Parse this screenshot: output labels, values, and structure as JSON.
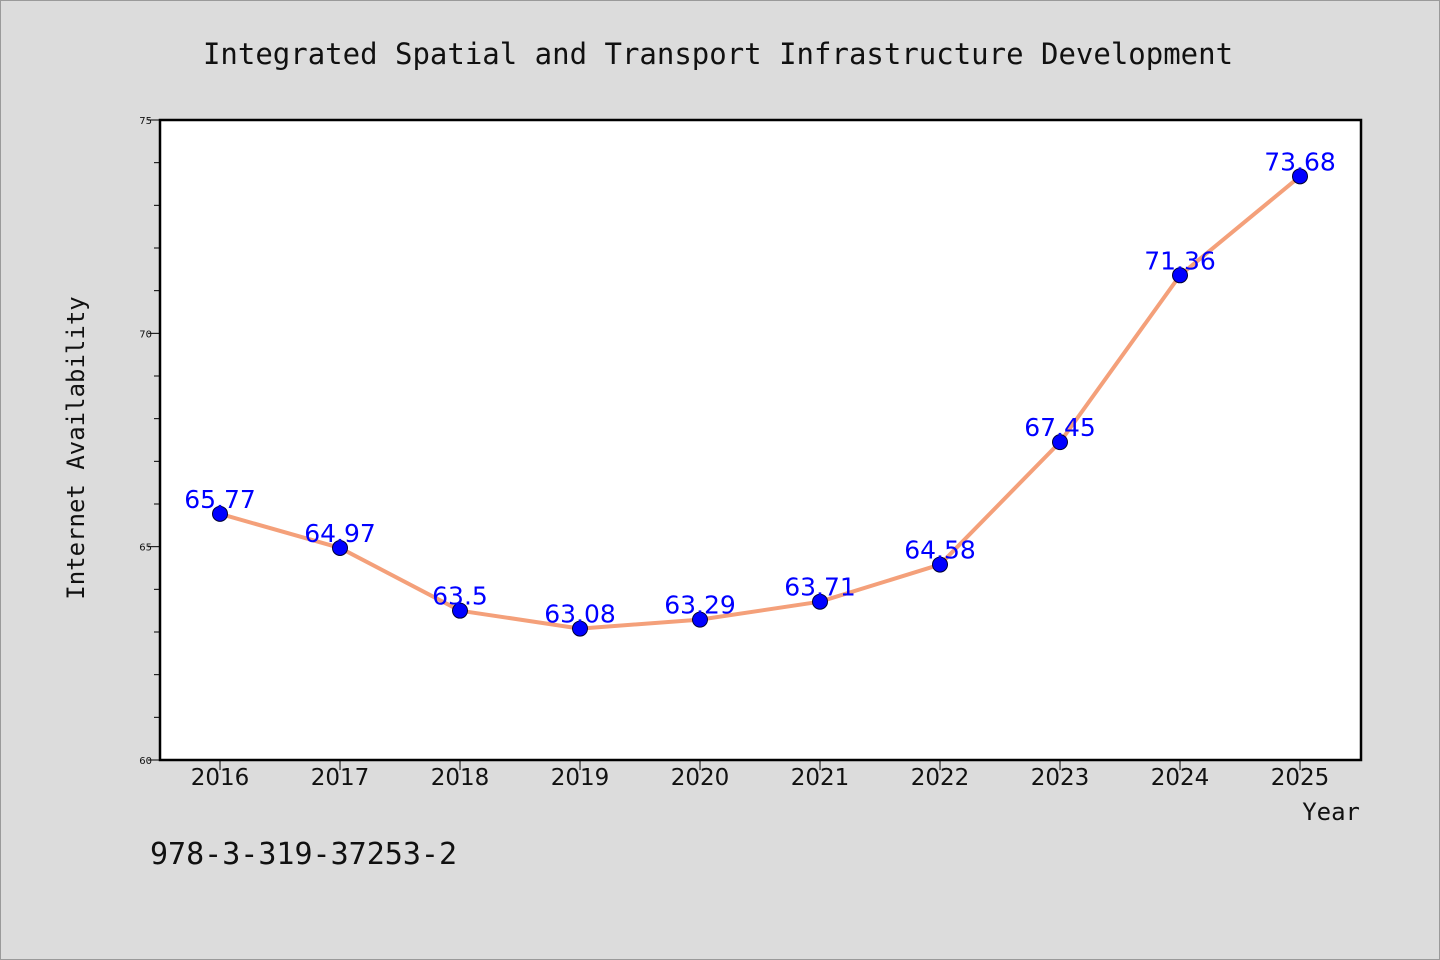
{
  "chart_data": {
    "type": "line",
    "title": "Integrated Spatial and Transport Infrastructure Development",
    "xlabel": "Year",
    "ylabel": "Internet Availability",
    "categories": [
      "2016",
      "2017",
      "2018",
      "2019",
      "2020",
      "2021",
      "2022",
      "2023",
      "2024",
      "2025"
    ],
    "series": [
      {
        "values": [
          65.77,
          64.97,
          63.5,
          63.08,
          63.29,
          63.71,
          64.58,
          67.45,
          71.36,
          73.68
        ],
        "color": "#f4a07a",
        "marker_color": "#0000ff"
      }
    ],
    "data_labels": [
      "65.77",
      "64.97",
      "63.5",
      "63.08",
      "63.29",
      "63.71",
      "64.58",
      "67.45",
      "71.36",
      "73.68"
    ],
    "ylim": [
      60,
      75
    ],
    "yticks": [
      60,
      65,
      70,
      75
    ],
    "ytick_labels": [
      "60",
      "65",
      "70",
      "75"
    ],
    "y_minor_step": 1,
    "grid": false,
    "legend": "none"
  },
  "annotation": "978-3-319-37253-2",
  "colors": {
    "background": "#dcdcdc",
    "plot_background": "#ffffff",
    "line": "#f4a07a",
    "marker": "#0000ff",
    "data_label": "#0000ff",
    "axis": "#000000"
  }
}
